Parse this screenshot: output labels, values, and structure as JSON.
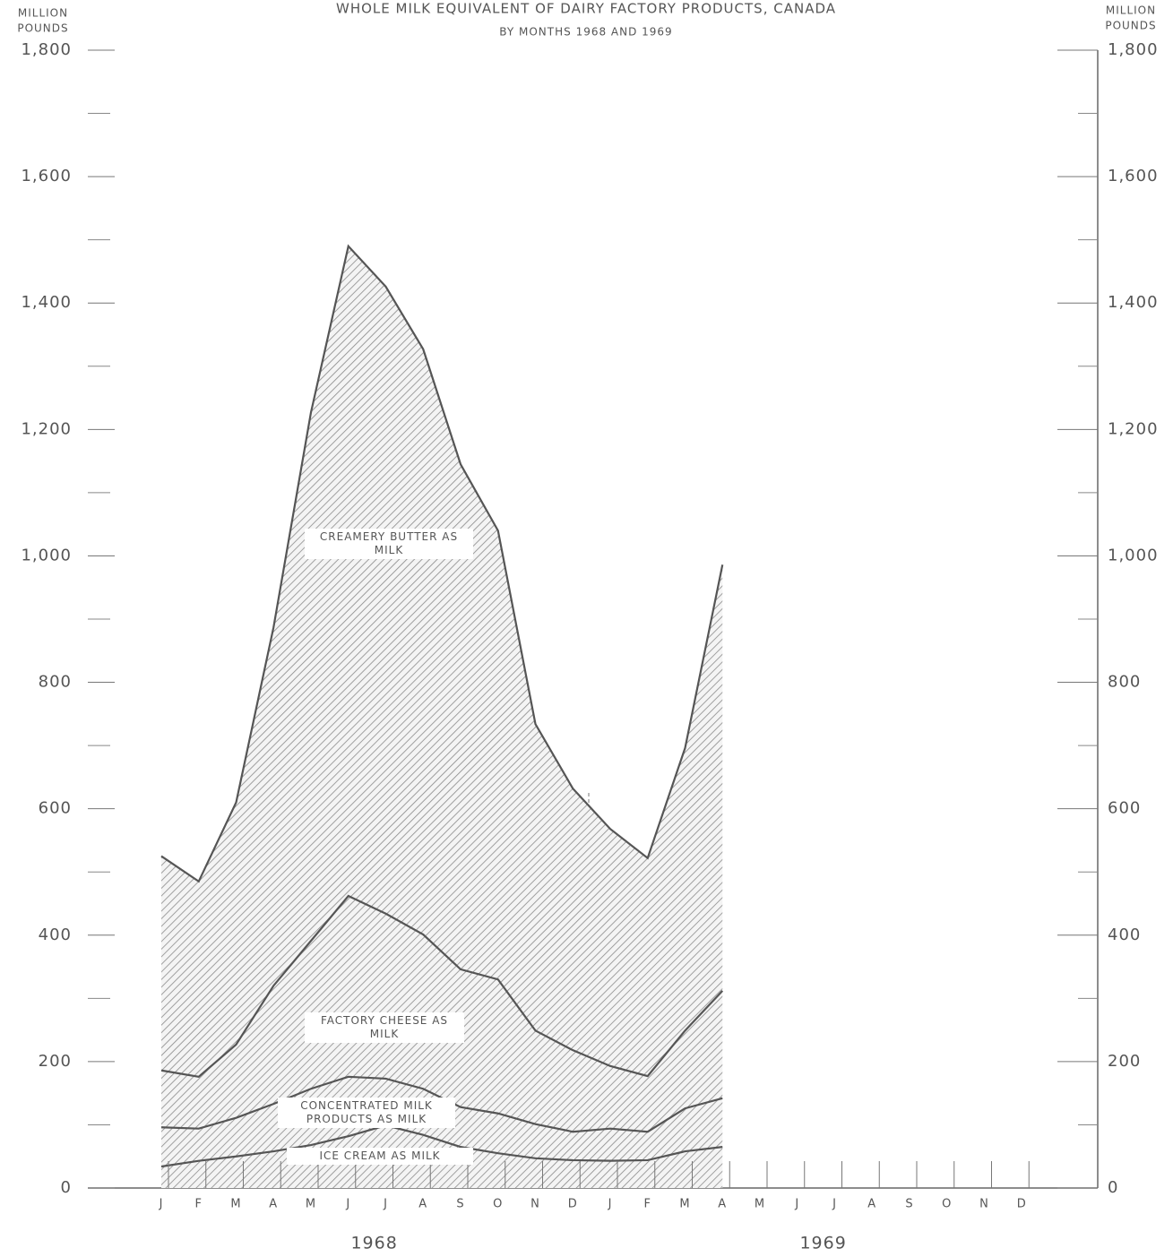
{
  "chart_data": {
    "type": "stacked_area",
    "title": "WHOLE MILK EQUIVALENT OF DAIRY FACTORY PRODUCTS, CANADA",
    "subtitle": "BY MONTHS 1968 AND 1969",
    "ylabel": [
      "MILLION",
      "POUNDS"
    ],
    "categories": [
      "J",
      "F",
      "M",
      "A",
      "M",
      "J",
      "J",
      "A",
      "S",
      "O",
      "N",
      "D",
      "J",
      "F",
      "M",
      "A",
      "M",
      "J",
      "J",
      "A",
      "S",
      "O",
      "N",
      "D"
    ],
    "year_labels": [
      "1968",
      "1969"
    ],
    "series": [
      {
        "name": "ICE CREAM AS MILK",
        "color": "#555555",
        "values": [
          34,
          43,
          50,
          58,
          68,
          82,
          99,
          84,
          65,
          55,
          47,
          44,
          43,
          44,
          58,
          65,
          null,
          null,
          null,
          null,
          null,
          null,
          null,
          null
        ]
      },
      {
        "name": "CONCENTRATED MILK PRODUCTS AS MILK",
        "color": "#555555",
        "values": [
          62,
          51,
          61,
          75,
          89,
          94,
          74,
          73,
          63,
          63,
          54,
          45,
          51,
          45,
          68,
          77,
          null,
          null,
          null,
          null,
          null,
          null,
          null,
          null
        ]
      },
      {
        "name": "FACTORY CHEESE AS MILK",
        "color": "#555555",
        "values": [
          90,
          82,
          116,
          187,
          234,
          286,
          261,
          244,
          218,
          212,
          148,
          129,
          99,
          88,
          123,
          170,
          null,
          null,
          null,
          null,
          null,
          null,
          null,
          null
        ]
      },
      {
        "name": "CREAMERY BUTTER AS MILK",
        "color": "#555555",
        "values": [
          339,
          309,
          383,
          567,
          836,
          1028,
          992,
          926,
          799,
          710,
          485,
          414,
          375,
          345,
          447,
          674,
          null,
          null,
          null,
          null,
          null,
          null,
          null,
          null
        ]
      }
    ],
    "ylim": [
      0,
      1800
    ],
    "yticks": [
      0,
      200,
      400,
      600,
      800,
      {
        "value": 1000,
        "label": "1,000"
      },
      {
        "value": 1200,
        "label": "1,200"
      },
      {
        "value": 1400,
        "label": "1,400"
      },
      {
        "value": 1600,
        "label": "1,600"
      },
      {
        "value": 1800,
        "label": "1,800"
      }
    ],
    "yminor_ticks": [
      100,
      300,
      500,
      700,
      900,
      1100,
      1300,
      1500,
      1700
    ]
  }
}
